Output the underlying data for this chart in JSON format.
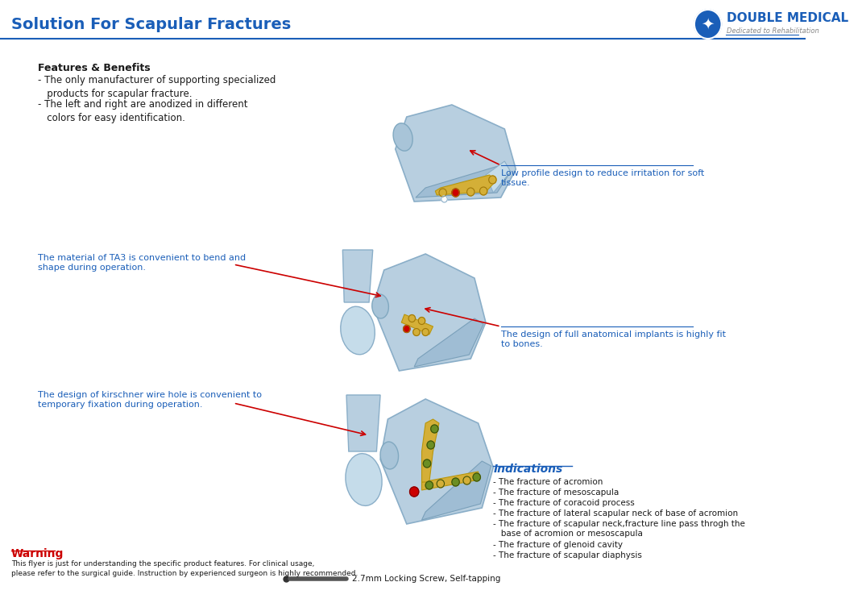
{
  "title": "Solution For Scapular Fractures",
  "title_color": "#1a5eb8",
  "title_fontsize": 14,
  "bg_color": "#ffffff",
  "header_line_color": "#1a5eb8",
  "logo_text": "DOUBLE MEDICAL",
  "logo_subtext": "Dedicated to Rehabilitation",
  "logo_color": "#1a5eb8",
  "features_title": "Features & Benefits",
  "features_items": [
    "- The only manufacturer of supporting specialized\n   products for scapular fracture.",
    "- The left and right are anodized in different\n   colors for easy identification."
  ],
  "annotation_left_1": "The material of TA3 is convenient to bend and\nshape during operation.",
  "annotation_left_2": "The design of kirschner wire hole is convenient to\ntemporary fixation during operation.",
  "annotation_right_1": "Low profile design to reduce irritation for soft\ntissue.",
  "annotation_right_2": "The design of full anatomical implants is highly fit\nto bones.",
  "indications_title": "Indications",
  "indications_items": [
    "- The fracture of acromion",
    "- The fracture of mesoscapula",
    "- The fracture of coracoid process",
    "- The fracture of lateral scapular neck of base of acromion",
    "- The fracture of scapular neck,fracture line pass throgh the\n   base of acromion or mesoscapula",
    "- The fracture of glenoid cavity",
    "- The fracture of scapular diaphysis"
  ],
  "warning_title": "Warning",
  "warning_text": "This flyer is just for understanding the specific product features. For clinical usage,\nplease refer to the surgical guide. Instruction by experienced surgeon is highly recommended.",
  "screw_label": "2.7mm Locking Screw, Self-tapping",
  "text_color_dark": "#1a1a1a",
  "text_color_blue": "#1a5eb8",
  "annotation_color": "#1a5eb8",
  "arrow_color": "#cc0000",
  "bone_color_light": "#add8e6",
  "bone_color_mid": "#87ceeb",
  "plate_color": "#d4af37",
  "screw_color_gold": "#d4af37",
  "screw_color_red": "#cc0000",
  "screw_color_olive": "#6b8e23"
}
